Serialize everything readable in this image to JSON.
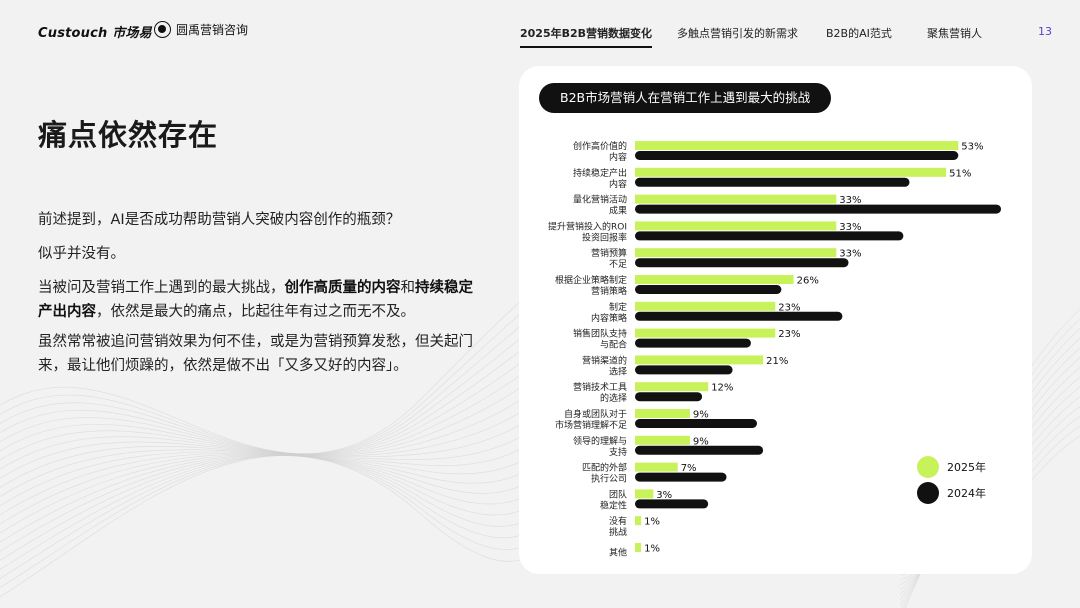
{
  "header": {
    "logo": "Custouch 市场易",
    "partner": "圆禹营销咨询",
    "nav": [
      {
        "label": "2025年B2B营销数据变化",
        "active": true
      },
      {
        "label": "多触点营销引发的新需求",
        "active": false
      },
      {
        "label": "B2B的AI范式",
        "active": false
      },
      {
        "label": "聚焦营销人",
        "active": false
      }
    ],
    "page_number": "13"
  },
  "main": {
    "title": "痛点依然存在",
    "p1": "前述提到，AI是否成功帮助营销人突破内容创作的瓶颈？",
    "p2": "似乎并没有。",
    "p3_a": "当被问及营销工作上遇到的最大挑战，",
    "p3_b": "创作高质量的内容",
    "p3_c": "和",
    "p3_d": "持续稳定产出内容",
    "p3_e": "，依然是最大的痛点，比起往年有过之而无不及。",
    "p4": "虽然常常被追问营销效果为何不佳，或是为营销预算发愁，但关起门来，最让他们烦躁的，依然是做不出「又多又好的内容」。"
  },
  "chart_data": {
    "type": "bar",
    "orientation": "horizontal",
    "title": "B2B市场营销人在营销工作上遇到最大的挑战",
    "categories": [
      [
        "创作高价值的",
        "内容"
      ],
      [
        "持续稳定产出",
        "内容"
      ],
      [
        "量化营销活动",
        "成果"
      ],
      [
        "提升营销投入的ROI",
        "投资回报率"
      ],
      [
        "营销预算",
        "不足"
      ],
      [
        "根据企业策略制定",
        "营销策略"
      ],
      [
        "制定",
        "内容策略"
      ],
      [
        "销售团队支持",
        "与配合"
      ],
      [
        "营销渠道的",
        "选择"
      ],
      [
        "营销技术工具",
        "的选择"
      ],
      [
        "自身或团队对于",
        "市场营销理解不足"
      ],
      [
        "领导的理解与",
        "支持"
      ],
      [
        "匹配的外部",
        "执行公司"
      ],
      [
        "团队",
        "稳定性"
      ],
      [
        "没有",
        "挑战"
      ],
      [
        "其他"
      ]
    ],
    "series": [
      {
        "name": "2025年",
        "color": "#c8f25a",
        "values": [
          53,
          51,
          33,
          33,
          33,
          26,
          23,
          23,
          21,
          12,
          9,
          9,
          7,
          3,
          1,
          1
        ],
        "labels": [
          "53%",
          "51%",
          "33%",
          "33%",
          "33%",
          "26%",
          "23%",
          "23%",
          "21%",
          "12%",
          "9%",
          "9%",
          "7%",
          "3%",
          "1%",
          "1%"
        ]
      },
      {
        "name": "2024年",
        "color": "#111111",
        "values": [
          53,
          45,
          60,
          44,
          35,
          24,
          34,
          19,
          16,
          11,
          20,
          21,
          15,
          12,
          null,
          null
        ]
      }
    ],
    "xlim": [
      0,
      60
    ],
    "legend_position": "bottom-right",
    "grid": false
  }
}
